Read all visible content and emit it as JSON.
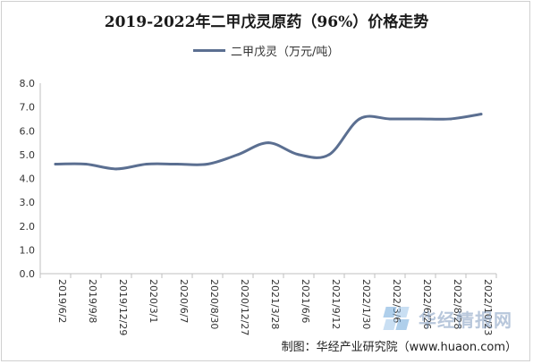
{
  "chart_data": {
    "type": "line",
    "title": "2019-2022年二甲戊灵原药（96%）价格走势",
    "categories": [
      "2019/6/2",
      "2019/9/8",
      "2019/12/29",
      "2020/3/1",
      "2020/6/7",
      "2020/8/30",
      "2020/12/27",
      "2021/3/28",
      "2021/6/6",
      "2021/9/12",
      "2022/1/30",
      "2022/3/6",
      "2022/6/26",
      "2022/8/28",
      "2022/10/23"
    ],
    "series": [
      {
        "name": "二甲戊灵（万元/吨）",
        "values": [
          4.6,
          4.6,
          4.4,
          4.6,
          4.6,
          4.6,
          5.0,
          5.5,
          5.0,
          5.0,
          6.5,
          6.5,
          6.5,
          6.5,
          6.7
        ]
      }
    ],
    "y_ticks": [
      "0.0",
      "1.0",
      "2.0",
      "3.0",
      "4.0",
      "5.0",
      "6.0",
      "7.0",
      "8.0"
    ],
    "ylim": [
      0,
      8
    ],
    "grid": false,
    "legend_position": "top",
    "series_color": "#5b6f91"
  },
  "source": "制图：华经产业研究院（www.huaon.com）",
  "watermark": "华经情报网"
}
